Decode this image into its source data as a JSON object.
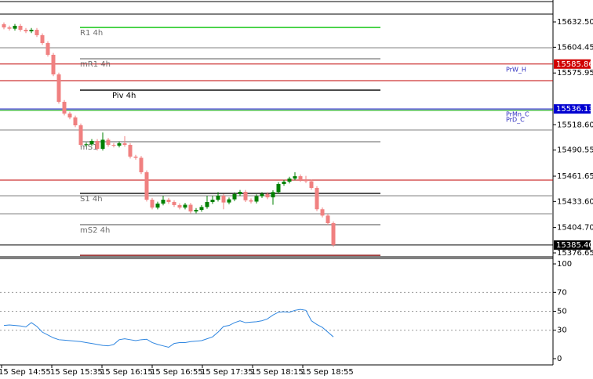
{
  "chart_data": [
    {
      "type": "candlestick",
      "ylim": [
        15372.3,
        15656.8
      ],
      "yticks": [
        {
          "value": 15632.5,
          "label": "15632.50"
        },
        15604.45,
        15575.95,
        {
          "value": 15518.6,
          "label": "15518.60"
        },
        15490.55,
        15461.65,
        {
          "value": 15433.6,
          "label": "15433.60"
        },
        {
          "value": 15404.7,
          "label": "15404.70"
        },
        15376.65
      ],
      "up_color": "#008000",
      "down_color": "#f08080",
      "open": [
        15630.0,
        15626.4,
        15625.0,
        15628.2,
        15623.8,
        15622.1,
        15623.8,
        15617.8,
        15609.1,
        15596.1,
        15574.4,
        15544.0,
        15531.0,
        15526.7,
        15518.0,
        15496.3,
        15497.0,
        15500.7,
        15492.0,
        15502.0,
        15496.3,
        15495.5,
        15498.1,
        15496.3,
        15483.3,
        15482.0,
        15466.0,
        15435.6,
        15426.9,
        15431.3,
        15435.6,
        15433.0,
        15429.6,
        15426.9,
        15430.0,
        15422.6,
        15424.3,
        15427.5,
        15433.0,
        15435.6,
        15440.0,
        15432.5,
        15436.0,
        15441.7,
        15444.3,
        15435.0,
        15433.5,
        15439.5,
        15442.0,
        15438.2,
        15444.0,
        15453.0,
        15455.6,
        15459.0,
        15461.6,
        15457.3,
        15456.0,
        15448.6,
        15425.0,
        15418.0,
        15409.6
      ],
      "high": [
        15632.0,
        15628.4,
        15630.2,
        15630.2,
        15625.8,
        15625.8,
        15625.8,
        15619.8,
        15611.1,
        15598.1,
        15576.4,
        15546.0,
        15533.0,
        15528.7,
        15520.0,
        15499.0,
        15502.7,
        15502.7,
        15510.0,
        15504.0,
        15498.3,
        15500.1,
        15506.0,
        15498.3,
        15485.3,
        15484.0,
        15468.0,
        15437.6,
        15433.3,
        15440.0,
        15437.6,
        15435.0,
        15431.6,
        15432.0,
        15432.0,
        15426.3,
        15429.5,
        15440.0,
        15440.0,
        15444.0,
        15442.0,
        15438.0,
        15443.7,
        15446.3,
        15446.3,
        15437.0,
        15441.5,
        15444.0,
        15444.0,
        15446.0,
        15455.0,
        15457.6,
        15461.0,
        15466.0,
        15463.6,
        15462.0,
        15458.0,
        15450.6,
        15427.0,
        15420.0,
        15411.6
      ],
      "low": [
        15624.4,
        15623.0,
        15623.0,
        15621.8,
        15620.1,
        15620.1,
        15615.8,
        15607.1,
        15594.1,
        15572.4,
        15542.0,
        15529.0,
        15524.7,
        15516.0,
        15494.3,
        15494.3,
        15495.0,
        15490.0,
        15490.0,
        15494.3,
        15493.5,
        15493.5,
        15494.3,
        15481.3,
        15480.0,
        15464.0,
        15433.6,
        15424.9,
        15424.9,
        15429.3,
        15431.0,
        15427.6,
        15424.9,
        15424.9,
        15420.6,
        15420.6,
        15422.3,
        15425.5,
        15431.0,
        15433.6,
        15425.0,
        15430.5,
        15434.0,
        15439.7,
        15433.0,
        15431.5,
        15431.5,
        15437.5,
        15436.2,
        15430.0,
        15442.0,
        15451.0,
        15453.6,
        15457.0,
        15455.3,
        15454.0,
        15446.6,
        15423.0,
        15416.0,
        15407.6,
        15383.4
      ],
      "close": [
        15626.4,
        15625.0,
        15628.2,
        15623.8,
        15622.1,
        15623.8,
        15617.8,
        15609.1,
        15596.1,
        15574.4,
        15544.0,
        15531.0,
        15526.7,
        15518.0,
        15496.3,
        15497.0,
        15500.7,
        15492.0,
        15502.0,
        15496.3,
        15495.5,
        15498.1,
        15496.3,
        15483.3,
        15482.0,
        15466.0,
        15435.6,
        15426.9,
        15431.3,
        15435.6,
        15433.0,
        15429.6,
        15426.9,
        15430.0,
        15422.6,
        15424.3,
        15427.5,
        15433.0,
        15435.6,
        15440.0,
        15432.5,
        15436.0,
        15441.7,
        15444.3,
        15435.0,
        15433.5,
        15439.5,
        15442.0,
        15438.2,
        15444.0,
        15453.0,
        15455.6,
        15459.0,
        15461.6,
        15457.3,
        15456.0,
        15448.6,
        15425.0,
        15418.0,
        15409.6,
        15385.4
      ],
      "levels": [
        {
          "value": 15655.1,
          "color": "#000000"
        },
        {
          "value": 15641.2,
          "color": "#000000"
        },
        {
          "value": 15603.9,
          "color": "#808080"
        },
        {
          "value": 15585.86,
          "color": "#c00000"
        },
        {
          "value": 15567.5,
          "color": "#c00000"
        },
        {
          "value": 15536.13,
          "color": "#0000c0"
        },
        {
          "value": 15534.5,
          "color": "#00a000"
        },
        {
          "value": 15512.8,
          "color": "#808080"
        },
        {
          "value": 15457.3,
          "color": "#c00000"
        },
        {
          "value": 15440.0,
          "color": "#808080"
        },
        {
          "value": 15420.0,
          "color": "#808080"
        },
        {
          "value": 15385.4,
          "color": "#000000"
        }
      ],
      "pivots": [
        {
          "value": 15626.4,
          "color": "#00c000",
          "label": "R1 4h"
        },
        {
          "value": 15591.7,
          "color": "#808080",
          "label": "mR1 4h"
        },
        {
          "value": 15557.0,
          "color": "#000000",
          "label": "Piv 4h"
        },
        {
          "value": 15499.8,
          "color": "#808080",
          "label": "mS1"
        },
        {
          "value": 15442.6,
          "color": "#000000",
          "label": "S1 4h"
        },
        {
          "value": 15407.9,
          "color": "#808080",
          "label": "mS2 4h"
        },
        {
          "value": 15374.0,
          "color": "#800000"
        }
      ],
      "price_labels": [
        {
          "value": 15585.86,
          "label": "15585.86",
          "color": "#d00000"
        },
        {
          "value": 15536.13,
          "label": "15536.13",
          "color": "#0000d0"
        },
        {
          "value": 15385.4,
          "label": "15385.40",
          "color": "#000000"
        }
      ],
      "tags": [
        "PrW_H",
        "PrMn_C",
        "PrD_C"
      ]
    },
    {
      "type": "line",
      "ylim": [
        -6.6,
        105.8
      ],
      "yticks": [
        0,
        30,
        50,
        70,
        100
      ],
      "dashed": [
        30,
        50,
        70
      ],
      "color": "#2f86e0",
      "values": [
        35,
        35.5,
        35,
        34.5,
        33.5,
        38,
        34,
        28,
        25,
        22,
        20,
        19.5,
        19,
        18.5,
        18,
        17,
        16,
        15,
        14,
        13.5,
        15,
        20,
        21,
        20,
        19,
        20,
        20.5,
        17,
        15,
        13.5,
        12,
        16,
        17,
        17,
        18,
        18.5,
        19,
        21,
        23,
        28,
        34,
        35,
        38,
        40,
        38,
        38.5,
        39,
        40,
        42,
        46,
        49,
        49.5,
        49,
        51,
        52,
        51,
        40,
        36,
        33,
        28,
        23
      ],
      "xtick_labels": [
        "15 Sep 14:55",
        "15 Sep 15:35",
        "15 Sep 16:15",
        "15 Sep 16:55",
        "15 Sep 17:35",
        "15 Sep 18:15",
        "15 Sep 18:55"
      ]
    }
  ]
}
